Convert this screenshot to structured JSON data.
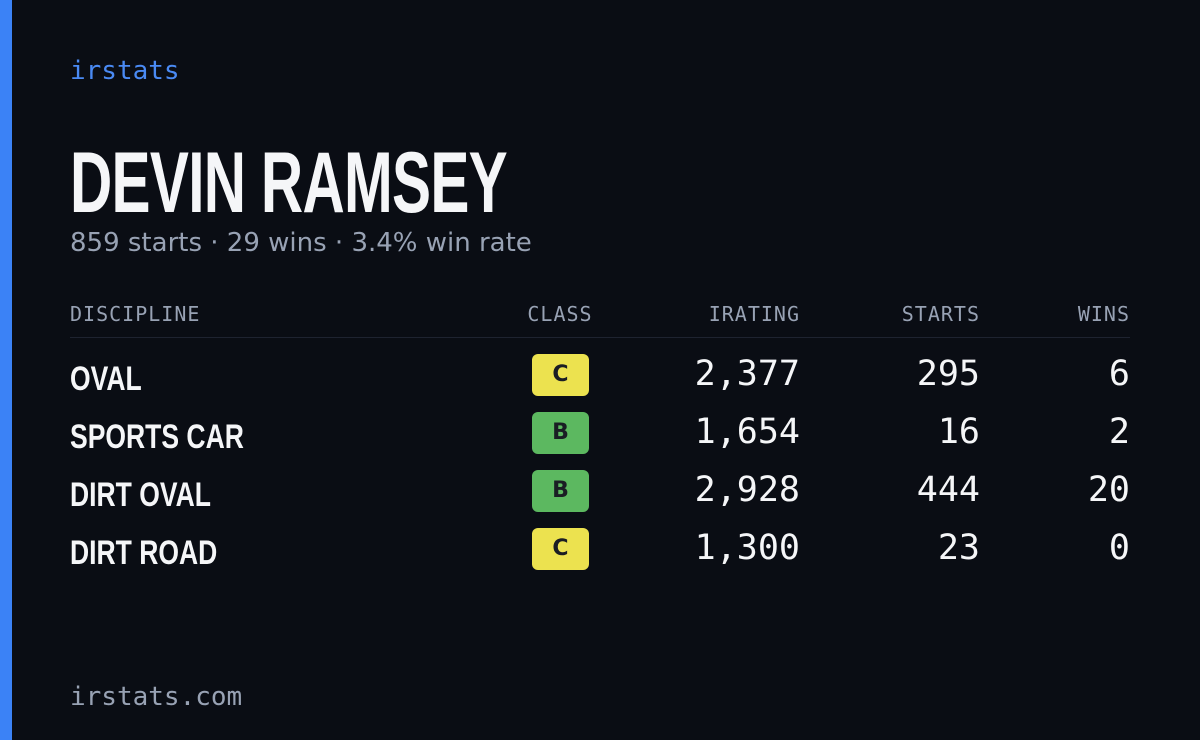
{
  "brand": "irstats",
  "name": "DEVIN RAMSEY",
  "subtitle": "859 starts · 29 wins · 3.4% win rate",
  "table": {
    "headers": [
      "DISCIPLINE",
      "CLASS",
      "IRATING",
      "STARTS",
      "WINS"
    ],
    "rows": [
      {
        "discipline": "OVAL",
        "class": "C",
        "class_color": "#ece24f",
        "irating": "2,377",
        "starts": "295",
        "wins": "6"
      },
      {
        "discipline": "SPORTS CAR",
        "class": "B",
        "class_color": "#5cb860",
        "irating": "1,654",
        "starts": "16",
        "wins": "2"
      },
      {
        "discipline": "DIRT OVAL",
        "class": "B",
        "class_color": "#5cb860",
        "irating": "2,928",
        "starts": "444",
        "wins": "20"
      },
      {
        "discipline": "DIRT ROAD",
        "class": "C",
        "class_color": "#ece24f",
        "irating": "1,300",
        "starts": "23",
        "wins": "0"
      }
    ]
  },
  "footer": "irstats.com"
}
